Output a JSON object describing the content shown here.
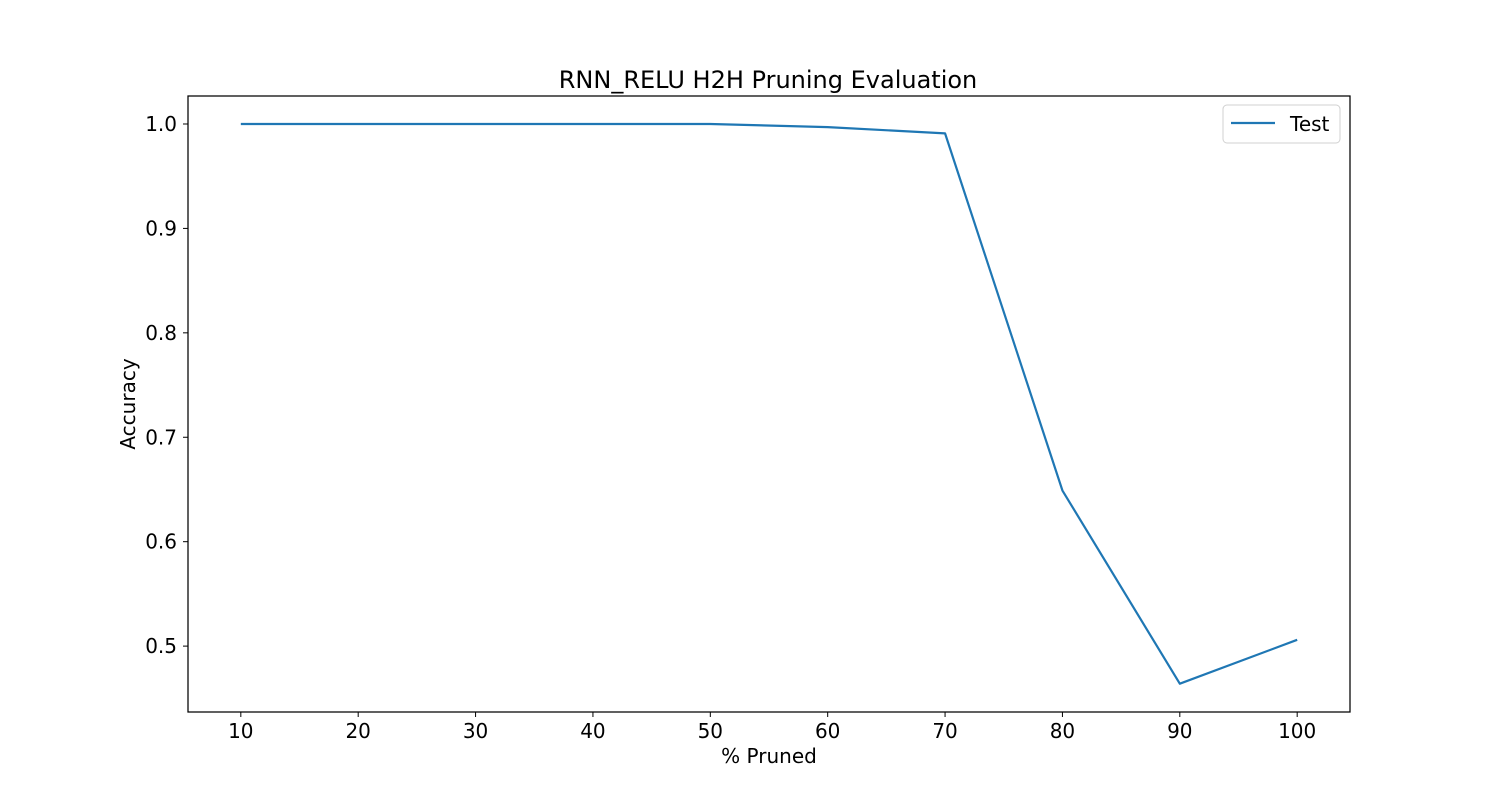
{
  "chart_data": {
    "type": "line",
    "title": "RNN_RELU H2H Pruning Evaluation",
    "xlabel": "% Pruned",
    "ylabel": "Accuracy",
    "x": [
      10,
      20,
      30,
      40,
      50,
      60,
      70,
      80,
      90,
      100
    ],
    "series": [
      {
        "name": "Test",
        "color": "#1f77b4",
        "values": [
          1.0,
          1.0,
          1.0,
          1.0,
          1.0,
          0.997,
          0.991,
          0.649,
          0.464,
          0.506
        ]
      }
    ],
    "xlim": [
      5.5,
      104.5
    ],
    "ylim": [
      0.4369,
      1.0268
    ],
    "xticks": [
      10,
      20,
      30,
      40,
      50,
      60,
      70,
      80,
      90,
      100
    ],
    "xtick_labels": [
      "10",
      "20",
      "30",
      "40",
      "50",
      "60",
      "70",
      "80",
      "90",
      "100"
    ],
    "yticks": [
      0.5,
      0.6,
      0.7,
      0.8,
      0.9,
      1.0
    ],
    "ytick_labels": [
      "0.5",
      "0.6",
      "0.7",
      "0.8",
      "0.9",
      "1.0"
    ],
    "grid": false,
    "legend_position": "top-right"
  }
}
